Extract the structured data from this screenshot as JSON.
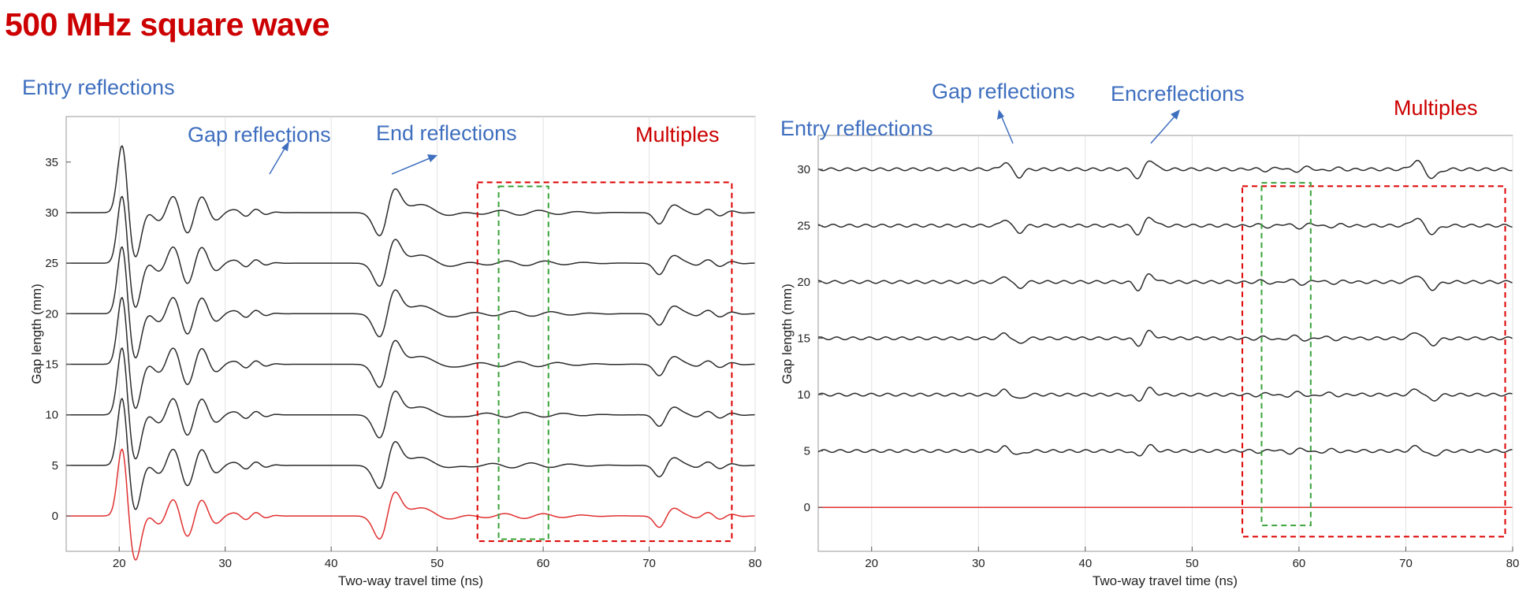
{
  "title": "500 MHz square wave",
  "colors": {
    "title": "#cc0000",
    "annotation_blue": "#3f6fbf",
    "annotation_red": "#cc0000",
    "trace": "#2b2b2b",
    "reference_trace": "#e03030",
    "multiples_box": "#dd0000",
    "window_box": "#3aa33a"
  },
  "chart_data": [
    {
      "type": "line",
      "panel": "left",
      "xlabel": "Two-way travel time (ns)",
      "ylabel": "Gap length (mm)",
      "xlim": [
        15,
        80
      ],
      "ylim": [
        -3.5,
        39.5
      ],
      "xticks": [
        20,
        30,
        40,
        50,
        60,
        70,
        80
      ],
      "yticks": [
        0,
        5,
        10,
        15,
        20,
        25,
        30,
        35
      ],
      "grid": "vertical",
      "trace_offsets": [
        0,
        5,
        10,
        15,
        20,
        25,
        30
      ],
      "reference_offset": 0,
      "events": {
        "entry_ns": 20.3,
        "entry_amp": 7.0,
        "gap_ns": [
          25.0,
          27.8
        ],
        "gap_amp": 2.0,
        "end_ns": 45.6,
        "end_amp": 4.7,
        "multiples_ns": [
          71.0
        ],
        "multiples_amp": 1.2
      },
      "annotations": {
        "entry": "Entry reflections",
        "gap": "Gap reflections",
        "end": "End reflections",
        "multiples": "Multiples"
      },
      "multiples_box": {
        "x": [
          53.8,
          77.8
        ],
        "y": [
          -2.5,
          33.0
        ]
      },
      "window_box": {
        "x": [
          55.8,
          60.5
        ],
        "y": [
          -2.3,
          32.6
        ]
      }
    },
    {
      "type": "line",
      "panel": "right",
      "xlabel": "Two-way travel time (ns)",
      "ylabel": "Gap length (mm)",
      "xlim": [
        15,
        80
      ],
      "ylim": [
        -3.9,
        33.0
      ],
      "xticks": [
        20,
        30,
        40,
        50,
        60,
        70,
        80
      ],
      "yticks": [
        0,
        5,
        10,
        15,
        20,
        25,
        30
      ],
      "grid": "vertical",
      "trace_offsets": [
        5,
        10,
        15,
        20,
        25,
        30
      ],
      "reference_offset": 0,
      "events": {
        "gap_ns": [
          32.5,
          33.8
        ],
        "gap_amp": 0.6,
        "end_ns": [
          45.0,
          46.0
        ],
        "end_amp": 0.8,
        "multiples_ns": [
          71.0,
          72.5
        ],
        "multiples_amp": 0.7
      },
      "annotations": {
        "entry": "Entry reflections",
        "gap": "Gap reflections",
        "end": "Encreflections",
        "multiples": "Multiples"
      },
      "multiples_box": {
        "x": [
          54.7,
          79.3
        ],
        "y": [
          -2.6,
          28.5
        ]
      },
      "window_box": {
        "x": [
          56.5,
          61.1
        ],
        "y": [
          -1.6,
          28.8
        ]
      }
    }
  ]
}
